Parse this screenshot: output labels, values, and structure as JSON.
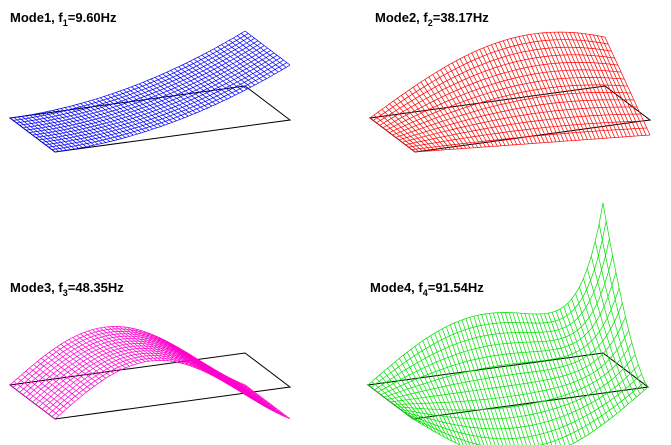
{
  "panels": [
    {
      "mode": "Mode1",
      "symbol": "f",
      "subscript": "1",
      "frequency": "=9.60Hz",
      "color": "#0000ff"
    },
    {
      "mode": "Mode2",
      "symbol": "f",
      "subscript": "2",
      "frequency": "=38.17Hz",
      "color": "#ff0000"
    },
    {
      "mode": "Mode3",
      "symbol": "f",
      "subscript": "3",
      "frequency": "=48.35Hz",
      "color": "#ff00cc"
    },
    {
      "mode": "Mode4",
      "symbol": "f",
      "subscript": "4",
      "frequency": "=91.54Hz",
      "color": "#00e000"
    }
  ]
}
